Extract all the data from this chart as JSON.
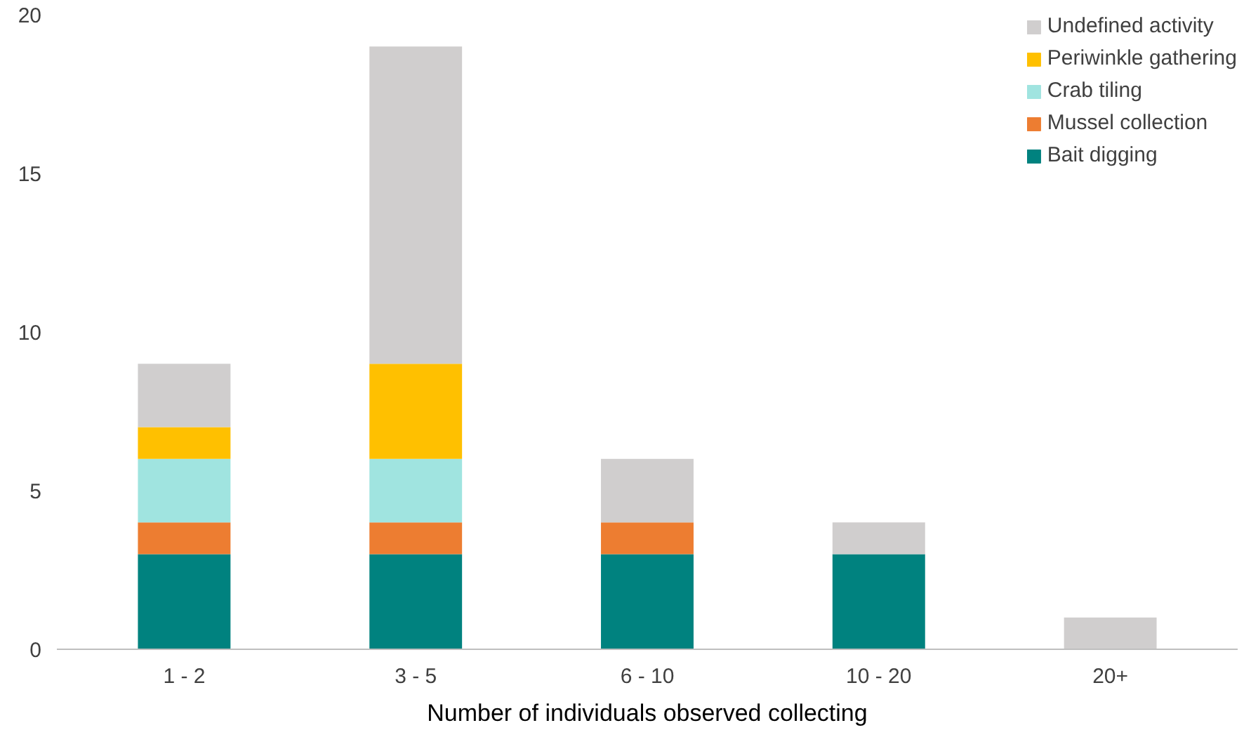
{
  "chart_data": {
    "type": "bar",
    "stacked": true,
    "xlabel": "Number of individuals observed collecting",
    "categories": [
      "1 - 2",
      "3 - 5",
      "6 - 10",
      "10 - 20",
      "20+"
    ],
    "series": [
      {
        "name": "Bait digging",
        "color": "#00827f",
        "values": [
          3,
          3,
          3,
          3,
          0
        ]
      },
      {
        "name": "Mussel collection",
        "color": "#ed7d31",
        "values": [
          1,
          1,
          1,
          0,
          0
        ]
      },
      {
        "name": "Crab tiling",
        "color": "#a0e4e0",
        "values": [
          2,
          2,
          0,
          0,
          0
        ]
      },
      {
        "name": "Periwinkle gathering",
        "color": "#ffc000",
        "values": [
          1,
          3,
          0,
          0,
          0
        ]
      },
      {
        "name": "Undefined activity",
        "color": "#d0cece",
        "values": [
          2,
          10,
          2,
          1,
          1
        ]
      }
    ],
    "ylim": [
      0,
      20
    ],
    "yticks": [
      0,
      5,
      10,
      15,
      20
    ],
    "grid": false,
    "legend": "top right"
  }
}
